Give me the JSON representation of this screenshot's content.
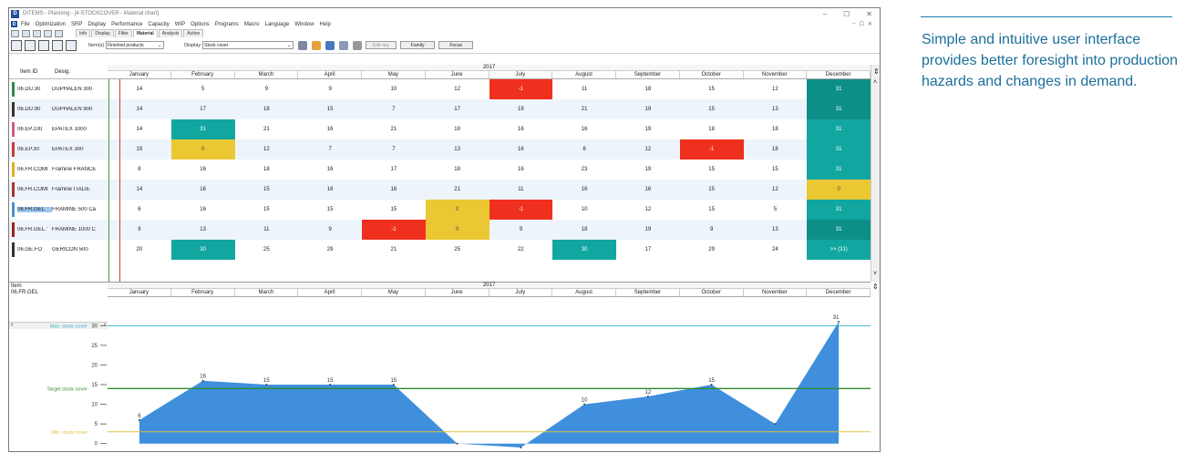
{
  "window": {
    "title": "DITEMS - Planning - [4-STOCKCOVER - Material chart]",
    "app_letter": "D",
    "min": "–",
    "max": "☐",
    "close": "✕"
  },
  "menu": [
    "File",
    "Optimization",
    "SRP",
    "Display",
    "Performance",
    "Capacity",
    "WIP",
    "Options",
    "Programs",
    "Macro",
    "Language",
    "Window",
    "Help"
  ],
  "menu_right": [
    "–",
    "☐",
    "✕"
  ],
  "tabs": [
    "Info",
    "Display",
    "Filter",
    "Material",
    "Analysis",
    "Action"
  ],
  "active_tab": "Material",
  "toolbar": {
    "items_label": "Item(s)",
    "items_value": "Finished products",
    "display_label": "Display",
    "display_value": "Stock cover",
    "btn_edit": "Edit req.",
    "btn_family": "Family",
    "btn_focus": "Focus"
  },
  "grid": {
    "col_item": "Item ID",
    "col_desig": "Desig.",
    "year": "2017",
    "months": [
      "January",
      "February",
      "March",
      "April",
      "May",
      "June",
      "July",
      "August",
      "September",
      "October",
      "November",
      "December"
    ],
    "rows": [
      {
        "id": "06.DU.30",
        "desig": "DUPHALEN 300",
        "color": "#2e8a4a",
        "values": [
          "14",
          "5",
          "9",
          "9",
          "10",
          "12",
          "-1",
          "11",
          "18",
          "15",
          "12",
          "31"
        ],
        "status": [
          "",
          "",
          "",
          "",
          "",
          "",
          "red",
          "",
          "",
          "",
          "",
          "dteal"
        ]
      },
      {
        "id": "06.DU.90",
        "desig": "DUPHALEN 900",
        "color": "#333333",
        "values": [
          "14",
          "17",
          "18",
          "15",
          "7",
          "17",
          "19",
          "21",
          "19",
          "15",
          "13",
          "31"
        ],
        "status": [
          "",
          "",
          "",
          "",
          "",
          "",
          "",
          "",
          "",
          "",
          "",
          "dteal"
        ]
      },
      {
        "id": "06.EP.100",
        "desig": "EPATEX 1000",
        "color": "#d25a8c",
        "values": [
          "14",
          "31",
          "21",
          "16",
          "21",
          "18",
          "16",
          "16",
          "19",
          "18",
          "18",
          "31"
        ],
        "status": [
          "",
          "teal",
          "",
          "",
          "",
          "",
          "",
          "",
          "",
          "",
          "",
          "teal"
        ]
      },
      {
        "id": "06.EP.30",
        "desig": "EPATEX 300",
        "color": "#c83a3a",
        "values": [
          "19",
          "0",
          "12",
          "7",
          "7",
          "13",
          "16",
          "6",
          "12",
          "-1",
          "18",
          "31"
        ],
        "status": [
          "",
          "yellow",
          "",
          "",
          "",
          "",
          "",
          "",
          "",
          "red",
          "",
          "teal"
        ]
      },
      {
        "id": "06.FR.COMI",
        "desig": "Framine FRANCE",
        "color": "#e0b020",
        "values": [
          "8",
          "16",
          "18",
          "16",
          "17",
          "18",
          "16",
          "23",
          "19",
          "15",
          "15",
          "31"
        ],
        "status": [
          "",
          "",
          "",
          "",
          "",
          "",
          "",
          "",
          "",
          "",
          "",
          "teal"
        ]
      },
      {
        "id": "06.FR.COMI",
        "desig": "Framine ITALIE",
        "color": "#b03030",
        "values": [
          "14",
          "16",
          "15",
          "16",
          "16",
          "21",
          "11",
          "16",
          "16",
          "15",
          "12",
          "0"
        ],
        "status": [
          "",
          "",
          "",
          "",
          "",
          "",
          "",
          "",
          "",
          "",
          "",
          "yellow"
        ]
      },
      {
        "id": "06.FR.GEL",
        "desig": "FRAMINE 500 Ca",
        "color": "#4a90d0",
        "values": [
          "6",
          "16",
          "15",
          "15",
          "15",
          "0",
          "-1",
          "10",
          "12",
          "15",
          "5",
          "31"
        ],
        "status": [
          "",
          "",
          "",
          "",
          "",
          "yellow",
          "red",
          "",
          "",
          "",
          "",
          "teal"
        ]
      },
      {
        "id": "06.FR.GEL.'",
        "desig": "FRAMINE 1000 C",
        "color": "#a02020",
        "values": [
          "9",
          "13",
          "11",
          "9",
          "-1",
          "0",
          "9",
          "18",
          "19",
          "9",
          "13",
          "31"
        ],
        "status": [
          "",
          "",
          "",
          "",
          "red",
          "yellow",
          "",
          "",
          "",
          "",
          "",
          "dteal"
        ]
      },
      {
        "id": "06.GE.FO",
        "desig": "GERICON 500",
        "color": "#333333",
        "values": [
          "20",
          "30",
          "25",
          "29",
          "21",
          "25",
          "22",
          "30",
          "17",
          "29",
          "24",
          ">> (31)"
        ],
        "status": [
          "",
          "teal",
          "",
          "",
          "",
          "",
          "",
          "teal",
          "",
          "",
          "",
          "teal"
        ]
      }
    ],
    "selected_row": 6,
    "scroll_left": "‹",
    "scroll_right": "›",
    "scroll_up": "˄",
    "scroll_down": "˅",
    "split_icon": "⇕"
  },
  "chart_panel": {
    "item_label": "Item",
    "item_value": "06.FR.GEL",
    "year": "2017"
  },
  "colors": {
    "red": "#f0301e",
    "yellow": "#ebc833",
    "teal": "#12a6a0",
    "dteal": "#0d8f87",
    "area": "#3f8fdd",
    "max_line": "#3cb4c8",
    "target_line": "#2f8a2f",
    "min_line": "#e0c040"
  },
  "chart_data": {
    "type": "area",
    "x": [
      "January",
      "February",
      "March",
      "April",
      "May",
      "June",
      "July",
      "August",
      "September",
      "October",
      "November",
      "December"
    ],
    "values": [
      6,
      16,
      15,
      15,
      15,
      0,
      -1,
      10,
      12,
      15,
      5,
      31
    ],
    "point_labels": [
      "6",
      "16",
      "15",
      "15",
      "15",
      "",
      "",
      "10",
      "12",
      "15",
      "",
      "31"
    ],
    "yticks": [
      0,
      5,
      10,
      15,
      20,
      25,
      30
    ],
    "ylim": [
      -1,
      31
    ],
    "reference_lines": [
      {
        "name": "Max. stock cover",
        "value": 30
      },
      {
        "name": "Target stock cover",
        "value": 14
      },
      {
        "name": "Min. stock cover",
        "value": 3
      }
    ]
  },
  "caption": "Simple and intuitive user interface provides better foresight into production hazards and changes in demand."
}
